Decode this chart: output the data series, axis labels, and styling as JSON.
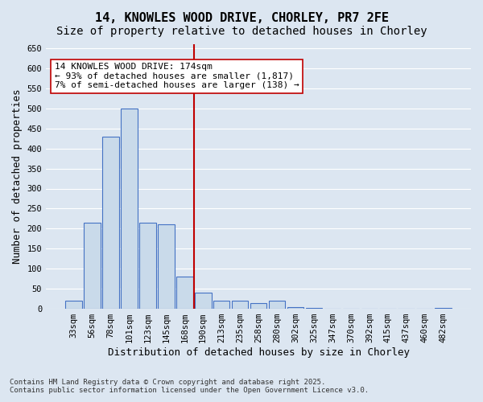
{
  "title1": "14, KNOWLES WOOD DRIVE, CHORLEY, PR7 2FE",
  "title2": "Size of property relative to detached houses in Chorley",
  "xlabel": "Distribution of detached houses by size in Chorley",
  "ylabel": "Number of detached properties",
  "bin_labels": [
    "33sqm",
    "56sqm",
    "78sqm",
    "101sqm",
    "123sqm",
    "145sqm",
    "168sqm",
    "190sqm",
    "213sqm",
    "235sqm",
    "258sqm",
    "280sqm",
    "302sqm",
    "325sqm",
    "347sqm",
    "370sqm",
    "392sqm",
    "415sqm",
    "437sqm",
    "460sqm",
    "482sqm"
  ],
  "bar_heights": [
    20,
    215,
    430,
    500,
    215,
    210,
    80,
    40,
    20,
    20,
    15,
    20,
    5,
    2,
    1,
    1,
    1,
    0,
    0,
    0,
    2
  ],
  "bar_color": "#c9daea",
  "bar_edge_color": "#4472c4",
  "background_color": "#dce6f1",
  "grid_color": "#ffffff",
  "vline_color": "#c00000",
  "annotation_text": "14 KNOWLES WOOD DRIVE: 174sqm\n← 93% of detached houses are smaller (1,817)\n7% of semi-detached houses are larger (138) →",
  "annotation_box_color": "#ffffff",
  "annotation_box_edge": "#c00000",
  "ylim": [
    0,
    660
  ],
  "yticks": [
    0,
    50,
    100,
    150,
    200,
    250,
    300,
    350,
    400,
    450,
    500,
    550,
    600,
    650
  ],
  "footer": "Contains HM Land Registry data © Crown copyright and database right 2025.\nContains public sector information licensed under the Open Government Licence v3.0.",
  "title_fontsize": 11,
  "subtitle_fontsize": 10,
  "xlabel_fontsize": 9,
  "ylabel_fontsize": 9,
  "tick_fontsize": 7.5,
  "annotation_fontsize": 8
}
